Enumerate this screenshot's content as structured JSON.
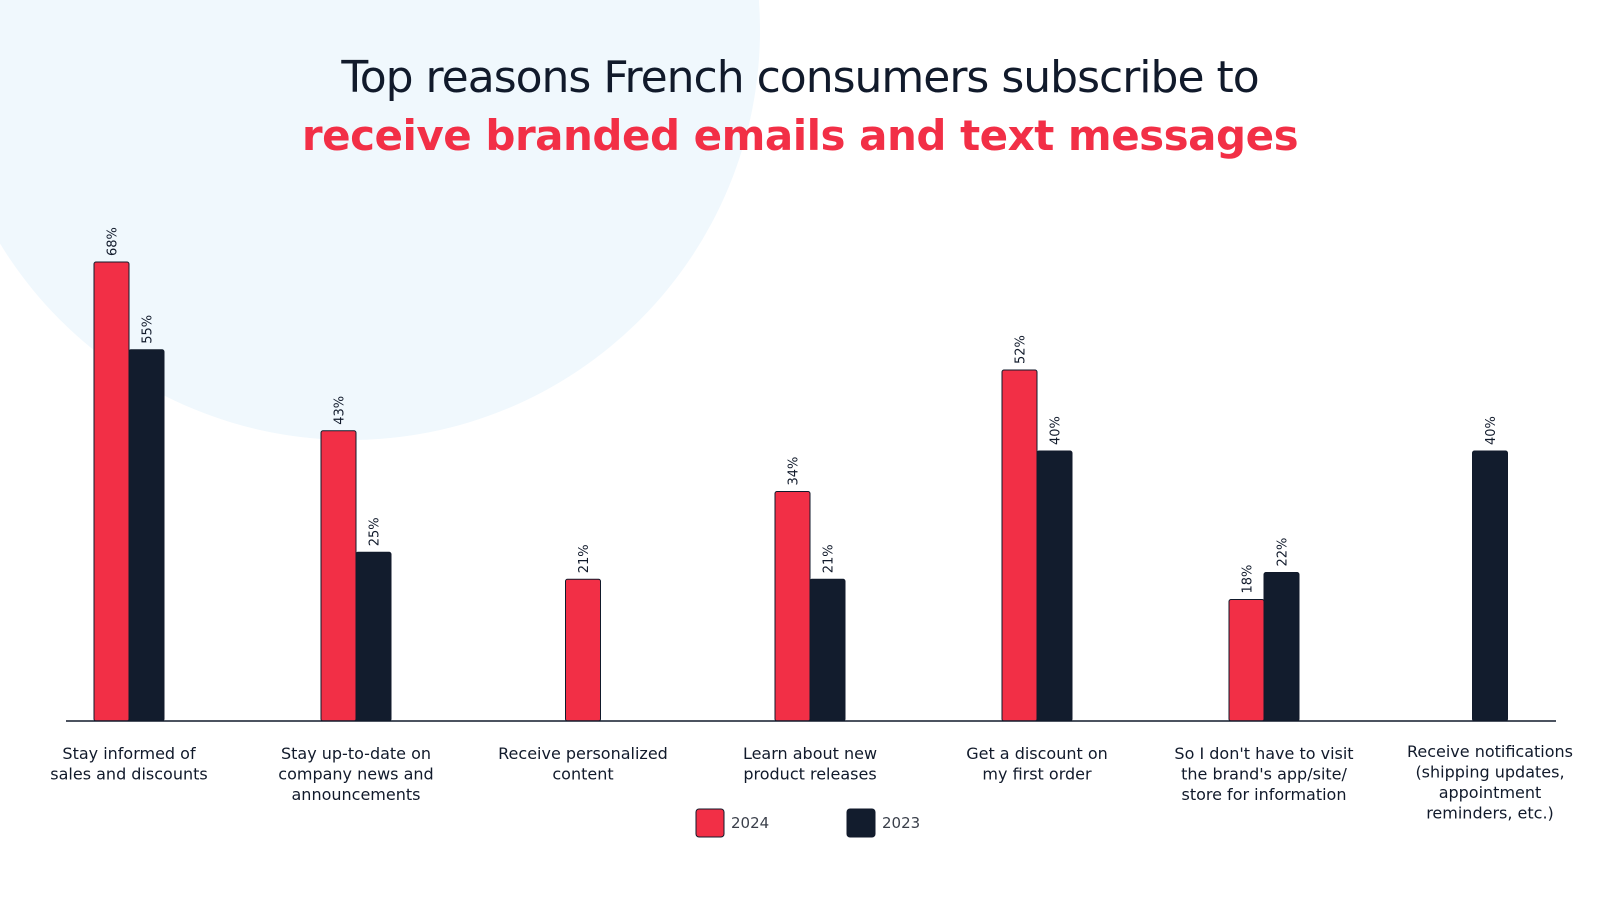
{
  "title": {
    "line1": "Top reasons French consumers subscribe to",
    "line2": "receive branded emails and text messages"
  },
  "colors": {
    "series_2024": "#f22f46",
    "series_2023": "#121c2d",
    "title_accent": "#f22f46",
    "title_dark": "#111a2b",
    "background_circle": "#f0f8fd"
  },
  "chart_data": {
    "type": "bar",
    "title": "Top reasons French consumers subscribe to receive branded emails and text messages",
    "categories": [
      [
        "Stay informed of",
        "sales and discounts"
      ],
      [
        "Stay up-to-date on",
        "company news and",
        "announcements"
      ],
      [
        "Receive personalized",
        "content"
      ],
      [
        "Learn about new",
        "product releases"
      ],
      [
        "Get a discount on",
        "my first order"
      ],
      [
        "So I don't have to visit",
        "the brand's app/site/",
        "store for information"
      ],
      [
        "Receive notifications",
        "(shipping updates,",
        "appointment",
        "reminders, etc.)"
      ]
    ],
    "series": [
      {
        "name": "2024",
        "values": [
          68,
          43,
          21,
          34,
          52,
          18,
          null
        ]
      },
      {
        "name": "2023",
        "values": [
          55,
          25,
          null,
          21,
          40,
          22,
          40
        ]
      }
    ],
    "value_suffix": "%",
    "ylim": [
      0,
      70
    ],
    "grid": false,
    "legend_position": "bottom-center"
  }
}
